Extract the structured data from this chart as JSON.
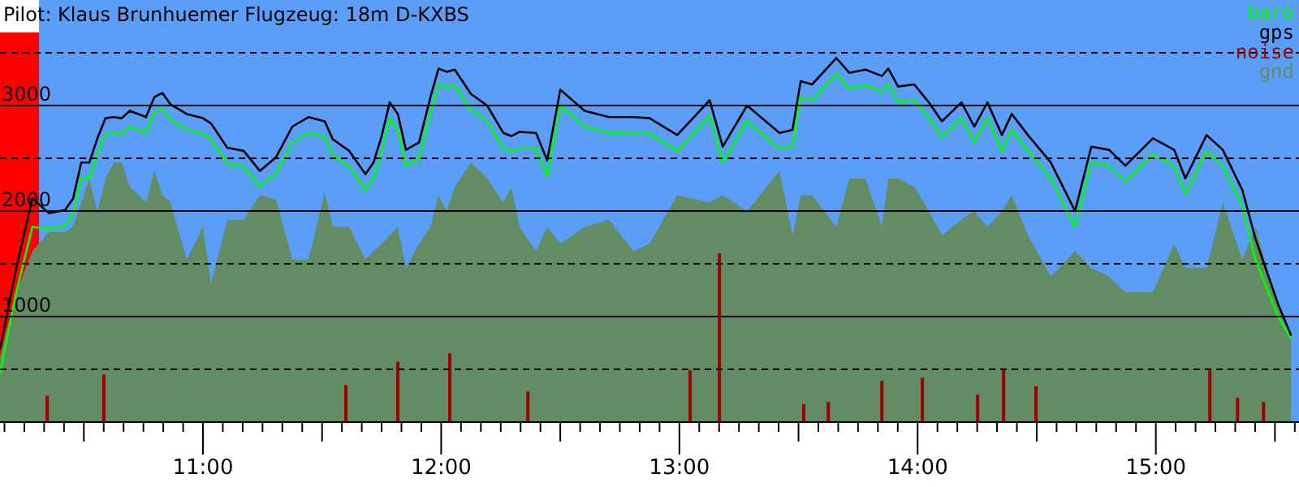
{
  "chart_data": {
    "type": "line",
    "title": "Pilot: Klaus Brunhuemer Flugzeug: 18m D-KXBS",
    "x": [
      10.148,
      10.216,
      10.284,
      10.353,
      10.421,
      10.455,
      10.489,
      10.523,
      10.557,
      10.591,
      10.625,
      10.659,
      10.693,
      10.761,
      10.796,
      10.83,
      10.864,
      10.932,
      11.0,
      11.034,
      11.102,
      11.171,
      11.239,
      11.307,
      11.375,
      11.443,
      11.511,
      11.545,
      11.614,
      11.682,
      11.716,
      11.75,
      11.784,
      11.818,
      11.852,
      11.907,
      11.955,
      11.989,
      12.023,
      12.057,
      12.125,
      12.193,
      12.261,
      12.295,
      12.329,
      12.398,
      12.445,
      12.5,
      12.602,
      12.704,
      12.807,
      12.875,
      12.991,
      13.127,
      13.182,
      13.284,
      13.42,
      13.475,
      13.509,
      13.557,
      13.659,
      13.713,
      13.781,
      13.85,
      13.877,
      13.918,
      13.986,
      14.047,
      14.102,
      14.184,
      14.238,
      14.293,
      14.354,
      14.395,
      14.463,
      14.559,
      14.661,
      14.729,
      14.804,
      14.872,
      14.988,
      15.077,
      15.124,
      15.213,
      15.281,
      15.363,
      15.418,
      15.513,
      15.568
    ],
    "series": [
      {
        "name": "baro",
        "color": "#00ff00",
        "values": [
          460,
          1230,
          1850,
          1830,
          1860,
          1970,
          2310,
          2310,
          2540,
          2730,
          2740,
          2730,
          2800,
          2740,
          2930,
          2970,
          2860,
          2770,
          2730,
          2680,
          2450,
          2420,
          2230,
          2360,
          2650,
          2740,
          2700,
          2530,
          2420,
          2200,
          2310,
          2560,
          2880,
          2770,
          2430,
          2500,
          2930,
          3200,
          3170,
          3190,
          2960,
          2850,
          2590,
          2560,
          2600,
          2590,
          2330,
          3000,
          2800,
          2740,
          2740,
          2730,
          2570,
          2900,
          2460,
          2850,
          2590,
          2620,
          3080,
          3050,
          3300,
          3160,
          3190,
          3130,
          3200,
          3030,
          3050,
          2880,
          2700,
          2880,
          2650,
          2880,
          2570,
          2770,
          2570,
          2310,
          1850,
          2460,
          2430,
          2280,
          2540,
          2430,
          2160,
          2570,
          2430,
          2050,
          1540,
          1000,
          790
        ]
      },
      {
        "name": "gps",
        "color": "#000000",
        "values": [
          690,
          1460,
          2120,
          1980,
          2010,
          2120,
          2460,
          2460,
          2690,
          2880,
          2890,
          2880,
          2950,
          2890,
          3080,
          3120,
          3010,
          2920,
          2880,
          2830,
          2600,
          2570,
          2380,
          2510,
          2800,
          2890,
          2850,
          2680,
          2570,
          2350,
          2460,
          2710,
          3030,
          2920,
          2580,
          2650,
          3080,
          3350,
          3320,
          3340,
          3110,
          3000,
          2740,
          2710,
          2750,
          2740,
          2480,
          3150,
          2950,
          2890,
          2890,
          2880,
          2720,
          3050,
          2610,
          3000,
          2740,
          2770,
          3230,
          3200,
          3450,
          3310,
          3340,
          3280,
          3350,
          3180,
          3200,
          3030,
          2850,
          3030,
          2800,
          3030,
          2720,
          2920,
          2720,
          2460,
          2000,
          2610,
          2580,
          2430,
          2690,
          2580,
          2310,
          2720,
          2580,
          2200,
          1740,
          1120,
          820
        ]
      },
      {
        "name": "noise",
        "type": "bar",
        "color": "#a00000",
        "x": [
          10.346,
          10.584,
          11.6,
          11.818,
          12.036,
          12.364,
          13.045,
          13.168,
          13.522,
          13.625,
          13.85,
          14.02,
          14.252,
          14.361,
          14.497,
          15.227,
          15.343,
          15.452
        ],
        "values": [
          250,
          450,
          350,
          570,
          650,
          290,
          490,
          1600,
          170,
          190,
          390,
          420,
          260,
          510,
          340,
          490,
          230,
          190
        ]
      },
      {
        "name": "gnd",
        "type": "area",
        "color": "#648c64",
        "values": [
          620,
          1230,
          1620,
          1800,
          1800,
          1850,
          2080,
          2310,
          2000,
          2310,
          2460,
          2460,
          2230,
          2080,
          2380,
          2150,
          2080,
          1540,
          1850,
          1310,
          1920,
          1920,
          2150,
          2110,
          1540,
          1540,
          2180,
          1850,
          1850,
          1540,
          1620,
          1690,
          1770,
          1850,
          1460,
          1690,
          1850,
          2150,
          2000,
          2230,
          2460,
          2310,
          2080,
          2230,
          1850,
          1620,
          1850,
          1690,
          1850,
          1920,
          1620,
          1690,
          2150,
          2080,
          2150,
          2000,
          2380,
          1770,
          2150,
          2150,
          1850,
          2310,
          2310,
          1850,
          2310,
          2310,
          2230,
          2000,
          1770,
          1920,
          2000,
          1850,
          2000,
          2150,
          1770,
          1380,
          1620,
          1460,
          1380,
          1230,
          1230,
          1690,
          1460,
          1460,
          2080,
          1540,
          1850,
          1080,
          770
        ]
      }
    ],
    "xlim": [
      10.148,
      15.601
    ],
    "ylim": [
      0,
      4000
    ],
    "xticks": [
      {
        "value": 10.1667,
        "label": null
      },
      {
        "value": 10.25,
        "label": null
      },
      {
        "value": 10.3333,
        "label": null
      },
      {
        "value": 10.4167,
        "label": null
      },
      {
        "value": 10.5,
        "label": null
      },
      {
        "value": 10.5833,
        "label": null
      },
      {
        "value": 10.6667,
        "label": null
      },
      {
        "value": 10.75,
        "label": null
      },
      {
        "value": 10.8333,
        "label": null
      },
      {
        "value": 10.9167,
        "label": null
      },
      {
        "value": 11,
        "label": "11:00"
      },
      {
        "value": 11.0833,
        "label": null
      },
      {
        "value": 11.1667,
        "label": null
      },
      {
        "value": 11.25,
        "label": null
      },
      {
        "value": 11.3333,
        "label": null
      },
      {
        "value": 11.4167,
        "label": null
      },
      {
        "value": 11.5,
        "label": null
      },
      {
        "value": 11.5833,
        "label": null
      },
      {
        "value": 11.6667,
        "label": null
      },
      {
        "value": 11.75,
        "label": null
      },
      {
        "value": 11.8333,
        "label": null
      },
      {
        "value": 11.9167,
        "label": null
      },
      {
        "value": 12,
        "label": "12:00"
      },
      {
        "value": 12.0833,
        "label": null
      },
      {
        "value": 12.1667,
        "label": null
      },
      {
        "value": 12.25,
        "label": null
      },
      {
        "value": 12.3333,
        "label": null
      },
      {
        "value": 12.4167,
        "label": null
      },
      {
        "value": 12.5,
        "label": null
      },
      {
        "value": 12.5833,
        "label": null
      },
      {
        "value": 12.6667,
        "label": null
      },
      {
        "value": 12.75,
        "label": null
      },
      {
        "value": 12.8333,
        "label": null
      },
      {
        "value": 12.9167,
        "label": null
      },
      {
        "value": 13,
        "label": "13:00"
      },
      {
        "value": 13.0833,
        "label": null
      },
      {
        "value": 13.1667,
        "label": null
      },
      {
        "value": 13.25,
        "label": null
      },
      {
        "value": 13.3333,
        "label": null
      },
      {
        "value": 13.4167,
        "label": null
      },
      {
        "value": 13.5,
        "label": null
      },
      {
        "value": 13.5833,
        "label": null
      },
      {
        "value": 13.6667,
        "label": null
      },
      {
        "value": 13.75,
        "label": null
      },
      {
        "value": 13.8333,
        "label": null
      },
      {
        "value": 13.9167,
        "label": null
      },
      {
        "value": 14,
        "label": "14:00"
      },
      {
        "value": 14.0833,
        "label": null
      },
      {
        "value": 14.1667,
        "label": null
      },
      {
        "value": 14.25,
        "label": null
      },
      {
        "value": 14.3333,
        "label": null
      },
      {
        "value": 14.4167,
        "label": null
      },
      {
        "value": 14.5,
        "label": null
      },
      {
        "value": 14.5833,
        "label": null
      },
      {
        "value": 14.6667,
        "label": null
      },
      {
        "value": 14.75,
        "label": null
      },
      {
        "value": 14.8333,
        "label": null
      },
      {
        "value": 14.9167,
        "label": null
      },
      {
        "value": 15,
        "label": "15:00"
      },
      {
        "value": 15.0833,
        "label": null
      },
      {
        "value": 15.1667,
        "label": null
      },
      {
        "value": 15.25,
        "label": null
      },
      {
        "value": 15.3333,
        "label": null
      },
      {
        "value": 15.4167,
        "label": null
      },
      {
        "value": 15.5,
        "label": null
      },
      {
        "value": 15.5833,
        "label": null
      }
    ],
    "yticks": [
      {
        "value": 500,
        "label": null
      },
      1000,
      {
        "value": 1500,
        "label": null
      },
      2000,
      {
        "value": 2500,
        "label": null
      },
      3000,
      {
        "value": 3500,
        "label": null
      }
    ],
    "bands": [
      {
        "axis": "x",
        "from": 10.148,
        "to": 10.312,
        "color": "#ff0000"
      }
    ],
    "grid": "y",
    "legend": "top right"
  }
}
